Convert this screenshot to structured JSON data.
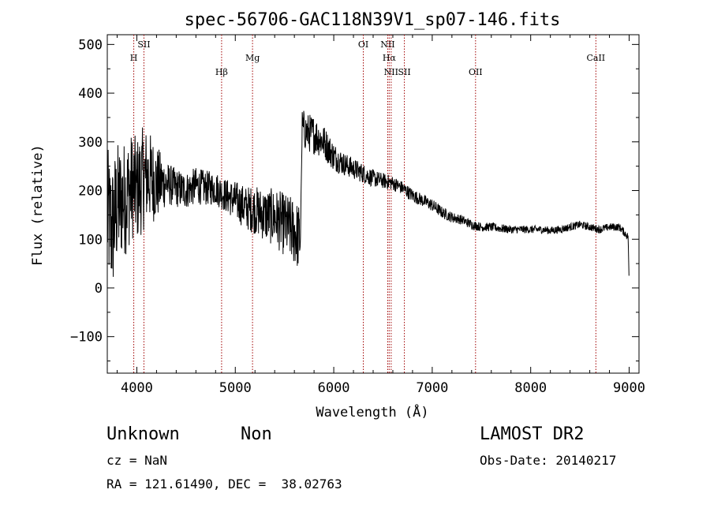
{
  "chart_data": {
    "type": "line",
    "title": "spec-56706-GAC118N39V1_sp07-146.fits",
    "xlabel": "Wavelength (Å)",
    "ylabel": "Flux (relative)",
    "xlim": [
      3700,
      9100
    ],
    "ylim": [
      -175,
      520
    ],
    "xticks": [
      4000,
      5000,
      6000,
      7000,
      8000,
      9000
    ],
    "yticks": [
      -100,
      0,
      100,
      200,
      300,
      400,
      500
    ],
    "xtick_labels": [
      "4000",
      "5000",
      "6000",
      "7000",
      "8000",
      "9000"
    ],
    "ytick_labels": [
      "−100",
      "0",
      "100",
      "200",
      "300",
      "400",
      "500"
    ],
    "series": [
      {
        "x": [
          3700,
          3750,
          3800,
          3850,
          3900,
          3950,
          4000,
          4050,
          4100,
          4150,
          4200,
          4300,
          4400,
          4500,
          4600,
          4700,
          4800,
          4900,
          5000,
          5100,
          5200,
          5300,
          5400,
          5500,
          5600,
          5660,
          5680,
          5720,
          5800,
          5900,
          6000,
          6100,
          6200,
          6300,
          6400,
          6500,
          6600,
          6700,
          6800,
          6900,
          7000,
          7100,
          7200,
          7300,
          7400,
          7500,
          7600,
          7700,
          7800,
          7900,
          8000,
          8100,
          8200,
          8300,
          8400,
          8500,
          8600,
          8700,
          8800,
          8900,
          8990,
          9000
        ],
        "y": [
          150,
          120,
          170,
          180,
          190,
          210,
          200,
          220,
          230,
          225,
          215,
          215,
          205,
          200,
          210,
          205,
          205,
          190,
          180,
          165,
          160,
          150,
          145,
          130,
          115,
          100,
          330,
          320,
          315,
          300,
          270,
          255,
          245,
          235,
          225,
          220,
          215,
          205,
          190,
          180,
          170,
          155,
          145,
          140,
          130,
          125,
          125,
          122,
          120,
          120,
          120,
          120,
          118,
          120,
          125,
          130,
          125,
          120,
          125,
          125,
          105,
          5
        ],
        "noise": [
          140,
          140,
          130,
          120,
          120,
          110,
          110,
          110,
          100,
          90,
          80,
          45,
          40,
          38,
          38,
          36,
          35,
          35,
          40,
          45,
          50,
          55,
          60,
          65,
          70,
          70,
          40,
          40,
          40,
          35,
          30,
          24,
          22,
          20,
          18,
          16,
          15,
          14,
          14,
          13,
          13,
          12,
          11,
          10,
          10,
          9,
          9,
          9,
          8,
          8,
          8,
          8,
          8,
          8,
          8,
          8,
          8,
          8,
          8,
          8,
          8,
          4
        ]
      }
    ],
    "lines": [
      {
        "label": "H",
        "x": 3969,
        "row": 1
      },
      {
        "label": "SII",
        "x": 4072,
        "row": 0
      },
      {
        "label": "Hβ",
        "x": 4861,
        "row": 2
      },
      {
        "label": "Mg",
        "x": 5175,
        "row": 1
      },
      {
        "label": "OI",
        "x": 6300,
        "row": 0
      },
      {
        "label": "NII",
        "x": 6548,
        "row": 0
      },
      {
        "label": "Hα",
        "x": 6563,
        "row": 1
      },
      {
        "label": "NII",
        "x": 6583,
        "row": 2
      },
      {
        "label": "SII",
        "x": 6717,
        "row": 2
      },
      {
        "label": "OII",
        "x": 7440,
        "row": 2
      },
      {
        "label": "CaII",
        "x": 8662,
        "row": 1
      }
    ],
    "line_color": "#a00000",
    "grid": false
  },
  "info": {
    "class": "Unknown",
    "subclass": "Non",
    "survey": "LAMOST DR2",
    "cz": "cz = NaN",
    "obs_date": "Obs-Date: 20140217",
    "coords": "RA = 121.61490, DEC =  38.02763"
  }
}
